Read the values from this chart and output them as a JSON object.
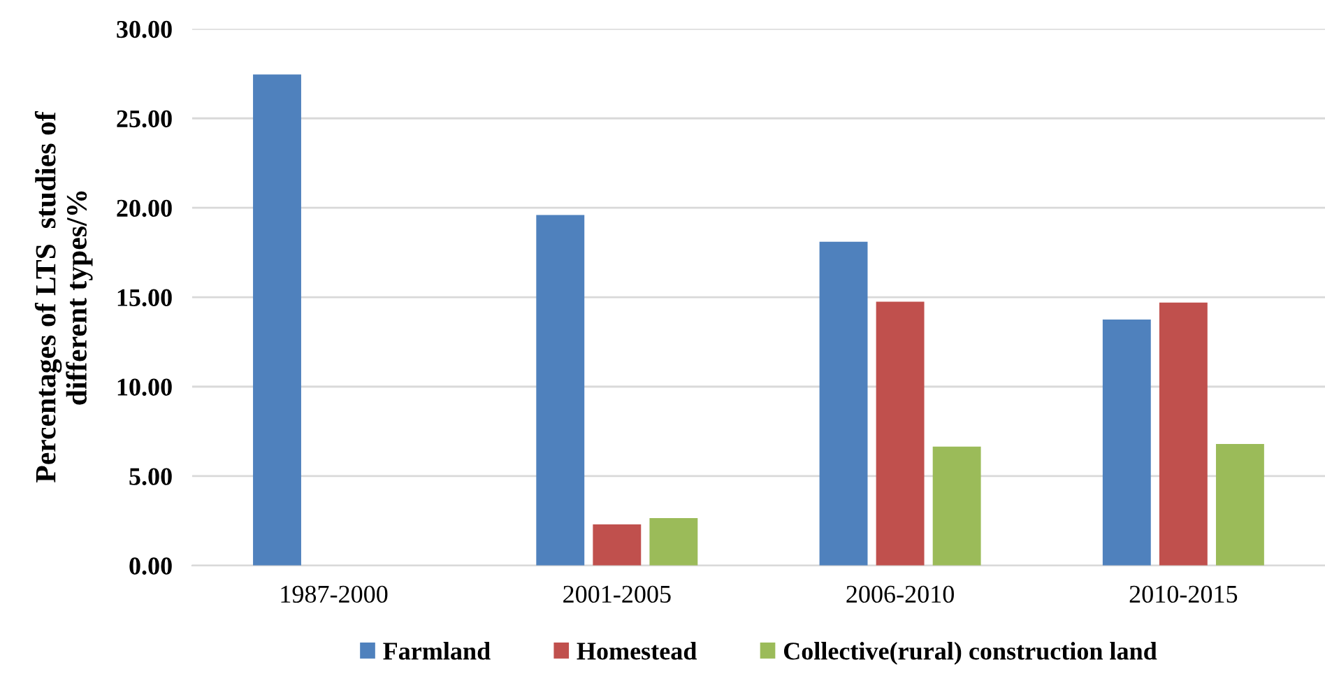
{
  "chart_data": {
    "type": "bar",
    "ylabel": "Percentages of LTS  studies of\ndifferent types/%",
    "categories": [
      "1987-2000",
      "2001-2005",
      "2006-2010",
      "2010-2015"
    ],
    "series": [
      {
        "name": "Farmland",
        "color": "#4f81bd",
        "values": [
          27.45,
          19.6,
          18.1,
          13.75
        ]
      },
      {
        "name": "Homestead",
        "color": "#c0504d",
        "values": [
          null,
          2.3,
          14.75,
          14.7
        ]
      },
      {
        "name": "Collective(rural) construction land",
        "color": "#9bbb59",
        "values": [
          null,
          2.65,
          6.65,
          6.8
        ]
      }
    ],
    "ylim": [
      0,
      30
    ],
    "yticks": [
      {
        "value": 0,
        "label": "0.00"
      },
      {
        "value": 5,
        "label": "5.00"
      },
      {
        "value": 10,
        "label": "10.00"
      },
      {
        "value": 15,
        "label": "15.00"
      },
      {
        "value": 20,
        "label": "20.00"
      },
      {
        "value": 25,
        "label": "25.00"
      },
      {
        "value": 30,
        "label": "30.00"
      }
    ],
    "grid": "y",
    "legend": "bottom"
  }
}
